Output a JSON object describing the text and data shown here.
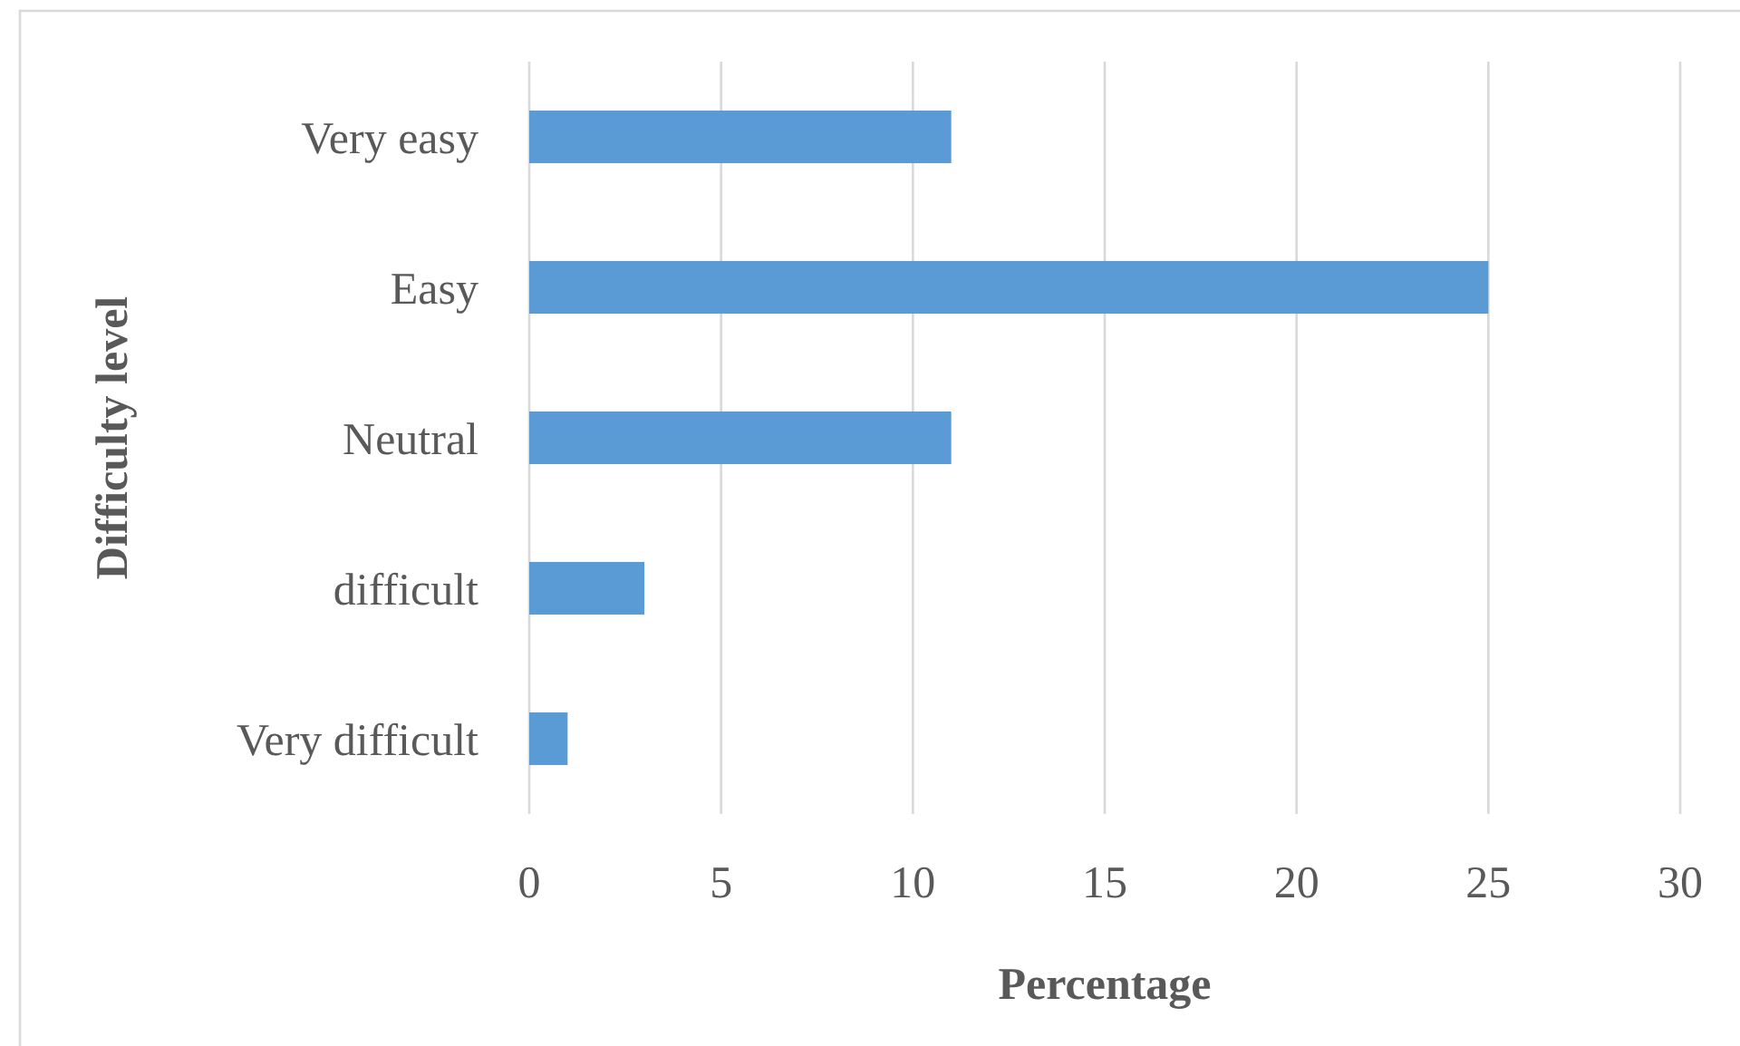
{
  "chart_data": {
    "type": "bar",
    "orientation": "horizontal",
    "xlabel": "Percentage",
    "ylabel": "Difficulty level",
    "categories": [
      "Very easy",
      "Easy",
      "Neutral",
      "difficult",
      "Very difficult"
    ],
    "values": [
      11,
      25,
      11,
      3,
      1
    ],
    "color": "#5b9bd5",
    "xlim": [
      0,
      30
    ],
    "xticks": [
      0,
      5,
      10,
      15,
      20,
      25,
      30
    ],
    "grid": "x"
  }
}
